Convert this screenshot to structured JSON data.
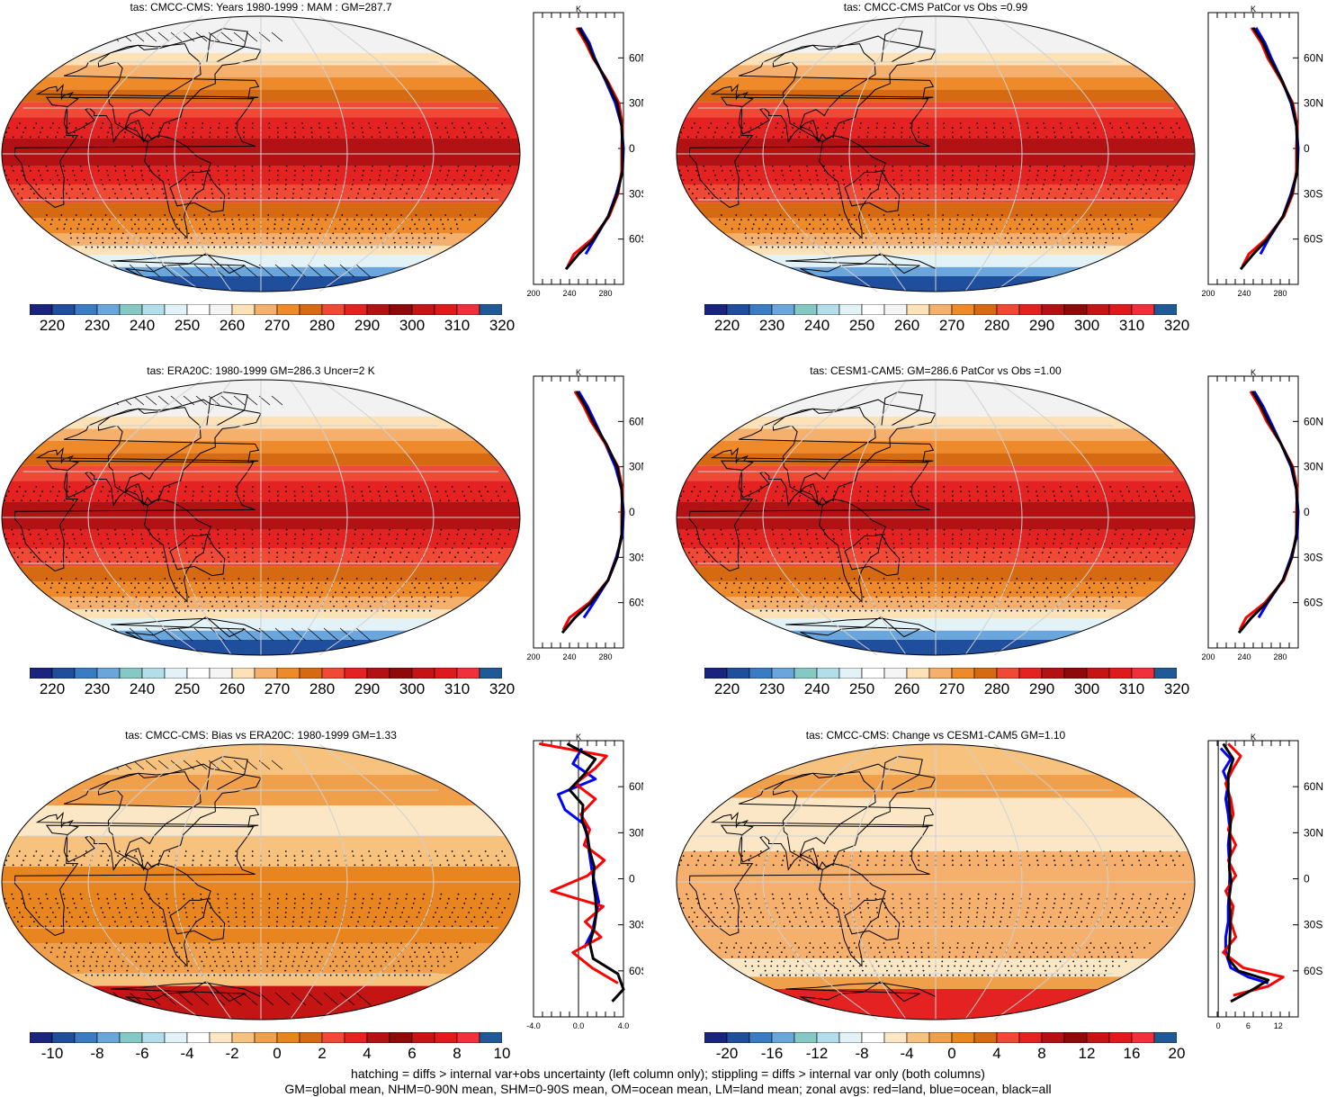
{
  "palettes": {
    "abs": [
      "#1a237e",
      "#1f4e9c",
      "#3a7cc4",
      "#6aa6dc",
      "#86c8c4",
      "#b3dde8",
      "#e3f2f7",
      "#ffffff",
      "#f5f5f5",
      "#fde2b8",
      "#f6b06e",
      "#ee8a2a",
      "#d66a12",
      "#f04a36",
      "#e42222",
      "#b31214",
      "#8e0a0a",
      "#c41414",
      "#e01a1a",
      "#f0303a",
      "#1f5a96"
    ],
    "bias": [
      "#1a237e",
      "#1f4e9c",
      "#3a7cc4",
      "#6aa6dc",
      "#86c8c4",
      "#b3dde8",
      "#e3f2f7",
      "#ffffff",
      "#fbe7c6",
      "#f6c27e",
      "#f0a04a",
      "#e9851e",
      "#d66a12",
      "#f04a36",
      "#e42222",
      "#b31214",
      "#8e0a0a",
      "#c41414",
      "#e01a1a",
      "#f0303a",
      "#1f5a96"
    ]
  },
  "panels": [
    {
      "title": "tas: CMCC-CMS: Years 1980-1999 : MAM : GM=287.7",
      "kind": "abs",
      "hatching": true,
      "colorbar_labels": [
        "220",
        "230",
        "240",
        "250",
        "260",
        "270",
        "280",
        "290",
        "300",
        "310",
        "320"
      ],
      "zonal": {
        "unit": "K",
        "xticks": [
          "200",
          "240",
          "280"
        ],
        "xlim": [
          200,
          300
        ],
        "lat_ticks": [
          "60N",
          "30N",
          "0",
          "30S",
          "60S"
        ],
        "series": [
          {
            "color": "#0000ff",
            "lat": [
              80,
              70,
              60,
              45,
              30,
              15,
              0,
              -15,
              -30,
              -45,
              -60,
              -70
            ],
            "val": [
              252,
              262,
              268,
              280,
              291,
              298,
              300,
              299,
              292,
              283,
              268,
              258
            ]
          },
          {
            "color": "#ff0000",
            "lat": [
              80,
              70,
              60,
              45,
              30,
              15,
              0,
              -15,
              -30,
              -45,
              -60,
              -70,
              -78
            ],
            "val": [
              248,
              258,
              266,
              282,
              295,
              299,
              298,
              298,
              294,
              284,
              265,
              245,
              238
            ]
          },
          {
            "color": "#000000",
            "lat": [
              80,
              70,
              60,
              45,
              30,
              15,
              0,
              -15,
              -30,
              -45,
              -60,
              -70,
              -80
            ],
            "val": [
              250,
              260,
              267,
              281,
              293,
              298,
              299,
              299,
              293,
              283,
              267,
              250,
              236
            ]
          }
        ]
      }
    },
    {
      "title": "tas: CMCC-CMS PatCor vs Obs =0.99",
      "kind": "abs",
      "hatching": false,
      "colorbar_labels": [
        "220",
        "230",
        "240",
        "250",
        "260",
        "270",
        "280",
        "290",
        "300",
        "310",
        "320"
      ],
      "zonal": {
        "unit": "K",
        "xticks": [
          "200",
          "240",
          "280"
        ],
        "xlim": [
          200,
          300
        ],
        "lat_ticks": [
          "60N",
          "30N",
          "0",
          "30S",
          "60S"
        ],
        "series": [
          {
            "color": "#0000ff",
            "lat": [
              80,
              70,
              60,
              45,
              30,
              15,
              0,
              -15,
              -30,
              -45,
              -60,
              -70
            ],
            "val": [
              253,
              263,
              270,
              282,
              292,
              298,
              300,
              299,
              292,
              283,
              267,
              258
            ]
          },
          {
            "color": "#ff0000",
            "lat": [
              80,
              70,
              60,
              45,
              30,
              15,
              0,
              -15,
              -30,
              -45,
              -60,
              -70,
              -78
            ],
            "val": [
              248,
              259,
              266,
              281,
              294,
              299,
              298,
              298,
              294,
              284,
              264,
              245,
              238
            ]
          },
          {
            "color": "#000000",
            "lat": [
              80,
              70,
              60,
              45,
              30,
              15,
              0,
              -15,
              -30,
              -45,
              -60,
              -70,
              -80
            ],
            "val": [
              250,
              261,
              268,
              282,
              293,
              298,
              299,
              299,
              293,
              283,
              266,
              250,
              236
            ]
          }
        ]
      }
    },
    {
      "title": "tas: ERA20C: 1980-1999 GM=286.3 Uncer=2 K",
      "kind": "abs",
      "hatching": true,
      "colorbar_labels": [
        "220",
        "230",
        "240",
        "250",
        "260",
        "270",
        "280",
        "290",
        "300",
        "310",
        "320"
      ],
      "zonal": {
        "unit": "K",
        "xticks": [
          "200",
          "240",
          "280"
        ],
        "xlim": [
          200,
          300
        ],
        "lat_ticks": [
          "60N",
          "30N",
          "0",
          "30S",
          "60S"
        ],
        "series": [
          {
            "color": "#0000ff",
            "lat": [
              80,
              70,
              60,
              45,
              30,
              15,
              0,
              -15,
              -30,
              -45,
              -60,
              -70
            ],
            "val": [
              250,
              260,
              268,
              280,
              291,
              298,
              300,
              299,
              292,
              283,
              267,
              256
            ]
          },
          {
            "color": "#ff0000",
            "lat": [
              80,
              70,
              60,
              45,
              30,
              15,
              0,
              -15,
              -30,
              -45,
              -60,
              -70,
              -78
            ],
            "val": [
              246,
              256,
              264,
              280,
              294,
              299,
              298,
              298,
              293,
              283,
              262,
              240,
              233
            ]
          },
          {
            "color": "#000000",
            "lat": [
              80,
              70,
              60,
              45,
              30,
              15,
              0,
              -15,
              -30,
              -45,
              -60,
              -70,
              -80
            ],
            "val": [
              248,
              258,
              266,
              281,
              293,
              298,
              299,
              298,
              293,
              283,
              264,
              246,
              232
            ]
          }
        ]
      }
    },
    {
      "title": "tas: CESM1-CAM5: GM=286.6 PatCor vs Obs =1.00",
      "kind": "abs",
      "hatching": false,
      "colorbar_labels": [
        "220",
        "230",
        "240",
        "250",
        "260",
        "270",
        "280",
        "290",
        "300",
        "310",
        "320"
      ],
      "zonal": {
        "unit": "K",
        "xticks": [
          "200",
          "240",
          "280"
        ],
        "xlim": [
          200,
          300
        ],
        "lat_ticks": [
          "60N",
          "30N",
          "0",
          "30S",
          "60S"
        ],
        "series": [
          {
            "color": "#0000ff",
            "lat": [
              80,
              70,
              60,
              45,
              30,
              15,
              0,
              -15,
              -30,
              -45,
              -60,
              -70
            ],
            "val": [
              251,
              261,
              269,
              281,
              292,
              298,
              300,
              299,
              292,
              283,
              266,
              256
            ]
          },
          {
            "color": "#ff0000",
            "lat": [
              80,
              70,
              60,
              45,
              30,
              15,
              0,
              -15,
              -30,
              -45,
              -60,
              -70,
              -78
            ],
            "val": [
              247,
              257,
              265,
              281,
              294,
              299,
              298,
              298,
              293,
              284,
              263,
              242,
              235
            ]
          },
          {
            "color": "#000000",
            "lat": [
              80,
              70,
              60,
              45,
              30,
              15,
              0,
              -15,
              -30,
              -45,
              -60,
              -70,
              -80
            ],
            "val": [
              249,
              259,
              267,
              281,
              293,
              298,
              299,
              298,
              293,
              283,
              265,
              248,
              234
            ]
          }
        ]
      }
    },
    {
      "title": "tas: CMCC-CMS: Bias vs ERA20C: 1980-1999 GM=1.33",
      "kind": "bias",
      "hatching": true,
      "colorbar_labels": [
        "-10",
        "-8",
        "-6",
        "-4",
        "-2",
        "0",
        "2",
        "4",
        "6",
        "8",
        "10"
      ],
      "zonal": {
        "unit": "K",
        "xticks": [
          "-4.0",
          "0.0",
          "4.0"
        ],
        "xlim": [
          -4,
          4
        ],
        "zero_line": 0,
        "lat_ticks": [
          "60N",
          "30N",
          "0",
          "30S",
          "60S"
        ],
        "series": [
          {
            "color": "#0000ff",
            "lat": [
              85,
              75,
              65,
              55,
              45,
              35,
              25,
              15,
              5,
              -5,
              -15,
              -25,
              -35,
              -45
            ],
            "val": [
              0.3,
              -0.5,
              1.5,
              -1.8,
              -1.2,
              0.6,
              0.8,
              1.0,
              1.2,
              1.5,
              1.8,
              1.5,
              1.2,
              0.5
            ]
          },
          {
            "color": "#ff0000",
            "lat": [
              88,
              80,
              72,
              62,
              52,
              42,
              32,
              22,
              12,
              2,
              -8,
              -18,
              -28,
              -38,
              -48,
              -58,
              -68
            ],
            "val": [
              -3.5,
              2.5,
              1.5,
              -0.3,
              1.5,
              0.2,
              1.0,
              0.5,
              2.3,
              0.8,
              -2.4,
              2.2,
              0.6,
              2.0,
              -0.5,
              1.2,
              3.5
            ]
          },
          {
            "color": "#000000",
            "lat": [
              88,
              78,
              68,
              58,
              48,
              38,
              28,
              18,
              8,
              -2,
              -12,
              -22,
              -32,
              -42,
              -52,
              -62,
              -72,
              -80
            ],
            "val": [
              -1.0,
              1.5,
              0.5,
              -0.8,
              0.4,
              0.3,
              0.8,
              1.0,
              1.4,
              1.3,
              1.5,
              1.6,
              1.4,
              1.0,
              1.3,
              3.5,
              4.0,
              3.0
            ]
          }
        ]
      }
    },
    {
      "title": "tas: CMCC-CMS: Change vs CESM1-CAM5 GM=1.10",
      "kind": "bias",
      "hatching": false,
      "colorbar_labels": [
        "-20",
        "-16",
        "-12",
        "-8",
        "-4",
        "0",
        "4",
        "8",
        "12",
        "16",
        "20"
      ],
      "zonal": {
        "unit": "K",
        "xticks": [
          "0",
          "6",
          "12"
        ],
        "xlim": [
          -2,
          16
        ],
        "zero_line": 0,
        "lat_ticks": [
          "60N",
          "30N",
          "0",
          "30S",
          "60S"
        ],
        "series": [
          {
            "color": "#0000ff",
            "lat": [
              85,
              78,
              70,
              62,
              52,
              42,
              32,
              22,
              12,
              2,
              -8,
              -18,
              -28,
              -38,
              -48,
              -58,
              -64,
              -68
            ],
            "val": [
              0.5,
              2.5,
              1.0,
              2.0,
              1.5,
              2.0,
              2.3,
              2.0,
              2.2,
              2.3,
              2.2,
              2.0,
              2.0,
              1.5,
              1.5,
              2.5,
              6,
              10
            ]
          },
          {
            "color": "#ff0000",
            "lat": [
              88,
              80,
              72,
              62,
              52,
              42,
              32,
              22,
              12,
              2,
              -8,
              -18,
              -28,
              -38,
              -48,
              -58,
              -64,
              -70,
              -76
            ],
            "val": [
              2.0,
              4.5,
              3.0,
              1.5,
              2.5,
              3.0,
              2.0,
              3.5,
              2.0,
              3.5,
              1.5,
              3.0,
              2.5,
              3.5,
              1.0,
              5.0,
              13.0,
              10.0,
              3.0
            ]
          },
          {
            "color": "#000000",
            "lat": [
              88,
              78,
              68,
              58,
              48,
              38,
              28,
              18,
              8,
              -2,
              -12,
              -22,
              -32,
              -42,
              -52,
              -60,
              -66,
              -72,
              -80
            ],
            "val": [
              1.0,
              3.0,
              2.0,
              2.0,
              2.2,
              2.5,
              2.3,
              2.4,
              2.2,
              2.6,
              2.2,
              2.4,
              2.4,
              2.3,
              2.0,
              4.0,
              10.0,
              7.0,
              2.5
            ]
          }
        ]
      }
    }
  ],
  "footer": {
    "line1": "hatching = diffs > internal var+obs uncertainty (left column only); stippling = diffs > internal var only (both columns)",
    "line2": "GM=global mean, NHM=0-90N mean, SHM=0-90S mean, OM=ocean mean, LM=land mean; zonal avgs: red=land, blue=ocean, black=all"
  }
}
